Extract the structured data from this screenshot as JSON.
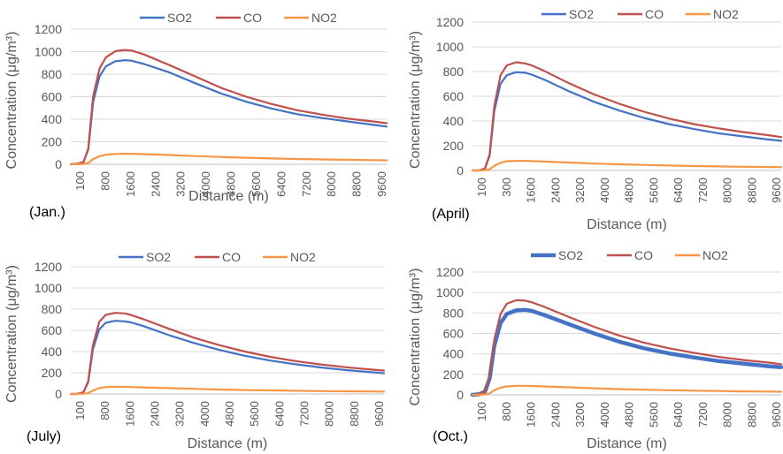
{
  "chart_data": [
    {
      "type": "line",
      "panel_label": "(Jan.)",
      "xlabel": "Distance (m)",
      "ylabel": "Concentration (μg/m³)",
      "x_ticks": [
        "100",
        "800",
        "1600",
        "2400",
        "3200",
        "4000",
        "4800",
        "5600",
        "6400",
        "7200",
        "8000",
        "8800",
        "9600"
      ],
      "y_ticks": [
        0,
        200,
        400,
        600,
        800,
        1000,
        1200
      ],
      "ylim": [
        0,
        1200
      ],
      "grid": true,
      "legend": "top",
      "x": [
        100,
        300,
        500,
        650,
        800,
        1000,
        1200,
        1500,
        1800,
        2000,
        2400,
        3200,
        4000,
        4800,
        5600,
        6400,
        7200,
        8000,
        8800,
        9600,
        10000
      ],
      "series": [
        {
          "name": "SO2",
          "color": "#4472C4",
          "bold": false,
          "values": [
            0,
            5,
            20,
            130,
            550,
            780,
            870,
            915,
            925,
            920,
            890,
            815,
            720,
            630,
            555,
            495,
            445,
            410,
            380,
            350,
            335
          ]
        },
        {
          "name": "CO",
          "color": "#C0504D",
          "bold": false,
          "values": [
            0,
            5,
            20,
            140,
            600,
            850,
            950,
            1005,
            1015,
            1010,
            975,
            880,
            780,
            680,
            600,
            535,
            480,
            440,
            405,
            380,
            365
          ]
        },
        {
          "name": "NO2",
          "color": "#F79646",
          "bold": false,
          "values": [
            0,
            1,
            3,
            12,
            45,
            72,
            85,
            92,
            94,
            93,
            90,
            82,
            73,
            65,
            58,
            52,
            47,
            43,
            40,
            37,
            35
          ]
        }
      ]
    },
    {
      "type": "line",
      "panel_label": "(April)",
      "xlabel": "Distance (m)",
      "ylabel": "Concentration (μg/m³)",
      "x_ticks": [
        "100",
        "300",
        "1600",
        "2400",
        "3200",
        "4000",
        "4800",
        "5600",
        "6400",
        "7200",
        "8000",
        "8800",
        "9600"
      ],
      "y_ticks": [
        0,
        200,
        400,
        600,
        800,
        1000,
        1200
      ],
      "ylim": [
        0,
        1200
      ],
      "grid": true,
      "legend": "top",
      "x": [
        100,
        300,
        500,
        650,
        800,
        1000,
        1200,
        1500,
        1800,
        2000,
        2400,
        3200,
        4000,
        4800,
        5600,
        6400,
        7200,
        8000,
        8800,
        9600,
        10000
      ],
      "series": [
        {
          "name": "SO2",
          "color": "#4472C4",
          "bold": false,
          "values": [
            0,
            0,
            15,
            120,
            480,
            700,
            770,
            795,
            790,
            775,
            735,
            640,
            555,
            485,
            425,
            375,
            335,
            300,
            275,
            250,
            240
          ]
        },
        {
          "name": "CO",
          "color": "#C0504D",
          "bold": false,
          "values": [
            0,
            0,
            15,
            130,
            520,
            770,
            850,
            875,
            865,
            850,
            805,
            705,
            615,
            540,
            475,
            420,
            375,
            340,
            310,
            285,
            270
          ]
        },
        {
          "name": "NO2",
          "color": "#F79646",
          "bold": false,
          "values": [
            0,
            0,
            2,
            10,
            38,
            62,
            74,
            78,
            78,
            76,
            72,
            64,
            56,
            50,
            45,
            40,
            36,
            33,
            30,
            28,
            27
          ]
        }
      ]
    },
    {
      "type": "line",
      "panel_label": "(July)",
      "xlabel": "Distance (m)",
      "ylabel": "Concentration (μg/m³)",
      "x_ticks": [
        "100",
        "800",
        "1600",
        "2400",
        "3200",
        "4000",
        "4800",
        "5600",
        "6400",
        "7200",
        "8000",
        "8800",
        "9600"
      ],
      "y_ticks": [
        0,
        200,
        400,
        600,
        800,
        1000,
        1200
      ],
      "ylim": [
        0,
        1200
      ],
      "grid": true,
      "legend": "top",
      "x": [
        100,
        300,
        500,
        650,
        800,
        1000,
        1200,
        1500,
        1800,
        2000,
        2400,
        3200,
        4000,
        4800,
        5600,
        6400,
        7200,
        8000,
        8800,
        9600,
        10000
      ],
      "series": [
        {
          "name": "SO2",
          "color": "#4472C4",
          "bold": false,
          "values": [
            0,
            0,
            15,
            110,
            420,
            610,
            670,
            690,
            685,
            675,
            640,
            555,
            480,
            415,
            360,
            315,
            280,
            250,
            225,
            205,
            195
          ]
        },
        {
          "name": "CO",
          "color": "#C0504D",
          "bold": false,
          "values": [
            0,
            0,
            15,
            120,
            460,
            680,
            745,
            765,
            760,
            745,
            705,
            615,
            530,
            460,
            400,
            350,
            310,
            278,
            252,
            230,
            220
          ]
        },
        {
          "name": "NO2",
          "color": "#F79646",
          "bold": false,
          "values": [
            0,
            0,
            2,
            8,
            32,
            55,
            64,
            68,
            67,
            65,
            62,
            55,
            48,
            42,
            37,
            33,
            30,
            27,
            25,
            23,
            22
          ]
        }
      ]
    },
    {
      "type": "line",
      "panel_label": "(Oct.)",
      "xlabel": "Distance (m)",
      "ylabel": "Concentration (μg/m³)",
      "x_ticks": [
        "100",
        "800",
        "1600",
        "2400",
        "3200",
        "4000",
        "4800",
        "5600",
        "6400",
        "7200",
        "8000",
        "8800",
        "9600"
      ],
      "y_ticks": [
        0,
        200,
        400,
        600,
        800,
        1000,
        1200
      ],
      "ylim": [
        0,
        1200
      ],
      "grid": true,
      "legend": "top",
      "x": [
        100,
        300,
        500,
        650,
        800,
        1000,
        1200,
        1500,
        1800,
        2000,
        2400,
        3200,
        4000,
        4800,
        5600,
        6400,
        7200,
        8000,
        8800,
        9600,
        10000
      ],
      "series": [
        {
          "name": "SO2",
          "color": "#4472C4",
          "bold": true,
          "values": [
            0,
            5,
            30,
            160,
            480,
            700,
            790,
            825,
            830,
            820,
            780,
            690,
            600,
            520,
            455,
            405,
            365,
            330,
            305,
            280,
            270
          ]
        },
        {
          "name": "CO",
          "color": "#C0504D",
          "bold": false,
          "values": [
            0,
            5,
            35,
            180,
            540,
            790,
            890,
            925,
            920,
            905,
            860,
            760,
            665,
            580,
            510,
            455,
            410,
            370,
            340,
            315,
            300
          ]
        },
        {
          "name": "NO2",
          "color": "#F79646",
          "bold": false,
          "values": [
            0,
            1,
            4,
            14,
            45,
            70,
            82,
            88,
            88,
            86,
            82,
            73,
            64,
            56,
            50,
            45,
            41,
            37,
            34,
            32,
            30
          ]
        }
      ]
    }
  ]
}
